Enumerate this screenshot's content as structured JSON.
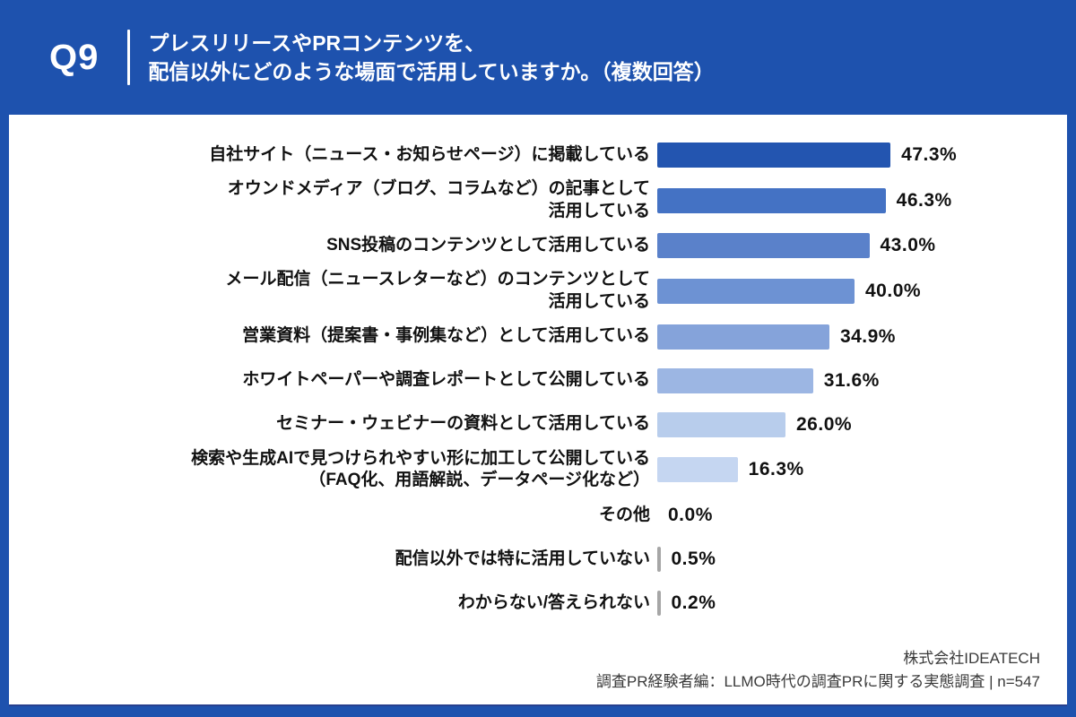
{
  "header": {
    "badge": "Q9",
    "title_line1": "プレスリリースやPRコンテンツを、",
    "title_line2": "配信以外にどのような場面で活用していますか。（複数回答）"
  },
  "chart_data": {
    "type": "bar",
    "orientation": "horizontal",
    "title": "プレスリリースやPRコンテンツを、配信以外にどのような場面で活用していますか。（複数回答）",
    "unit": "%",
    "n": 547,
    "grid": false,
    "axis_shown": false,
    "data_labels": true,
    "categories": [
      "自社サイト（ニュース・お知らせページ）に掲載している",
      "オウンドメディア（ブログ、コラムなど）の記事として活用している",
      "SNS投稿のコンテンツとして活用している",
      "メール配信（ニュースレターなど）のコンテンツとして活用している",
      "営業資料（提案書・事例集など）として活用している",
      "ホワイトペーパーや調査レポートとして公開している",
      "セミナー・ウェビナーの資料として活用している",
      "検索や生成AIで見つけられやすい形に加工して公開している（FAQ化、用語解説、データページ化など）",
      "その他",
      "配信以外では特に活用していない",
      "わからない/答えられない"
    ],
    "label_lines": [
      [
        "自社サイト（ニュース・お知らせページ）に掲載している"
      ],
      [
        "オウンドメディア（ブログ、コラムなど）の記事として",
        "活用している"
      ],
      [
        "SNS投稿のコンテンツとして活用している"
      ],
      [
        "メール配信（ニュースレターなど）のコンテンツとして",
        "活用している"
      ],
      [
        "営業資料（提案書・事例集など）として活用している"
      ],
      [
        "ホワイトペーパーや調査レポートとして公開している"
      ],
      [
        "セミナー・ウェビナーの資料として活用している"
      ],
      [
        "検索や生成AIで見つけられやすい形に加工して公開している",
        "（FAQ化、用語解説、データページ化など）"
      ],
      [
        "その他"
      ],
      [
        "配信以外では特に活用していない"
      ],
      [
        "わからない/答えられない"
      ]
    ],
    "values": [
      47.3,
      46.3,
      43.0,
      40.0,
      34.9,
      31.6,
      26.0,
      16.3,
      0.0,
      0.5,
      0.2
    ],
    "bar_colors": [
      "#2355b0",
      "#4472c4",
      "#5a81ca",
      "#6d92d3",
      "#85a3da",
      "#9cb6e3",
      "#b8cdec",
      "#c5d6f1",
      "#a6a6a6",
      "#a6a6a6",
      "#a6a6a6"
    ],
    "accent_color": "#1e52ae"
  },
  "footer": {
    "company": "株式会社IDEATECH",
    "source": "調査PR経験者編：LLMO時代の調査PRに関する実態調査 | n=547"
  }
}
